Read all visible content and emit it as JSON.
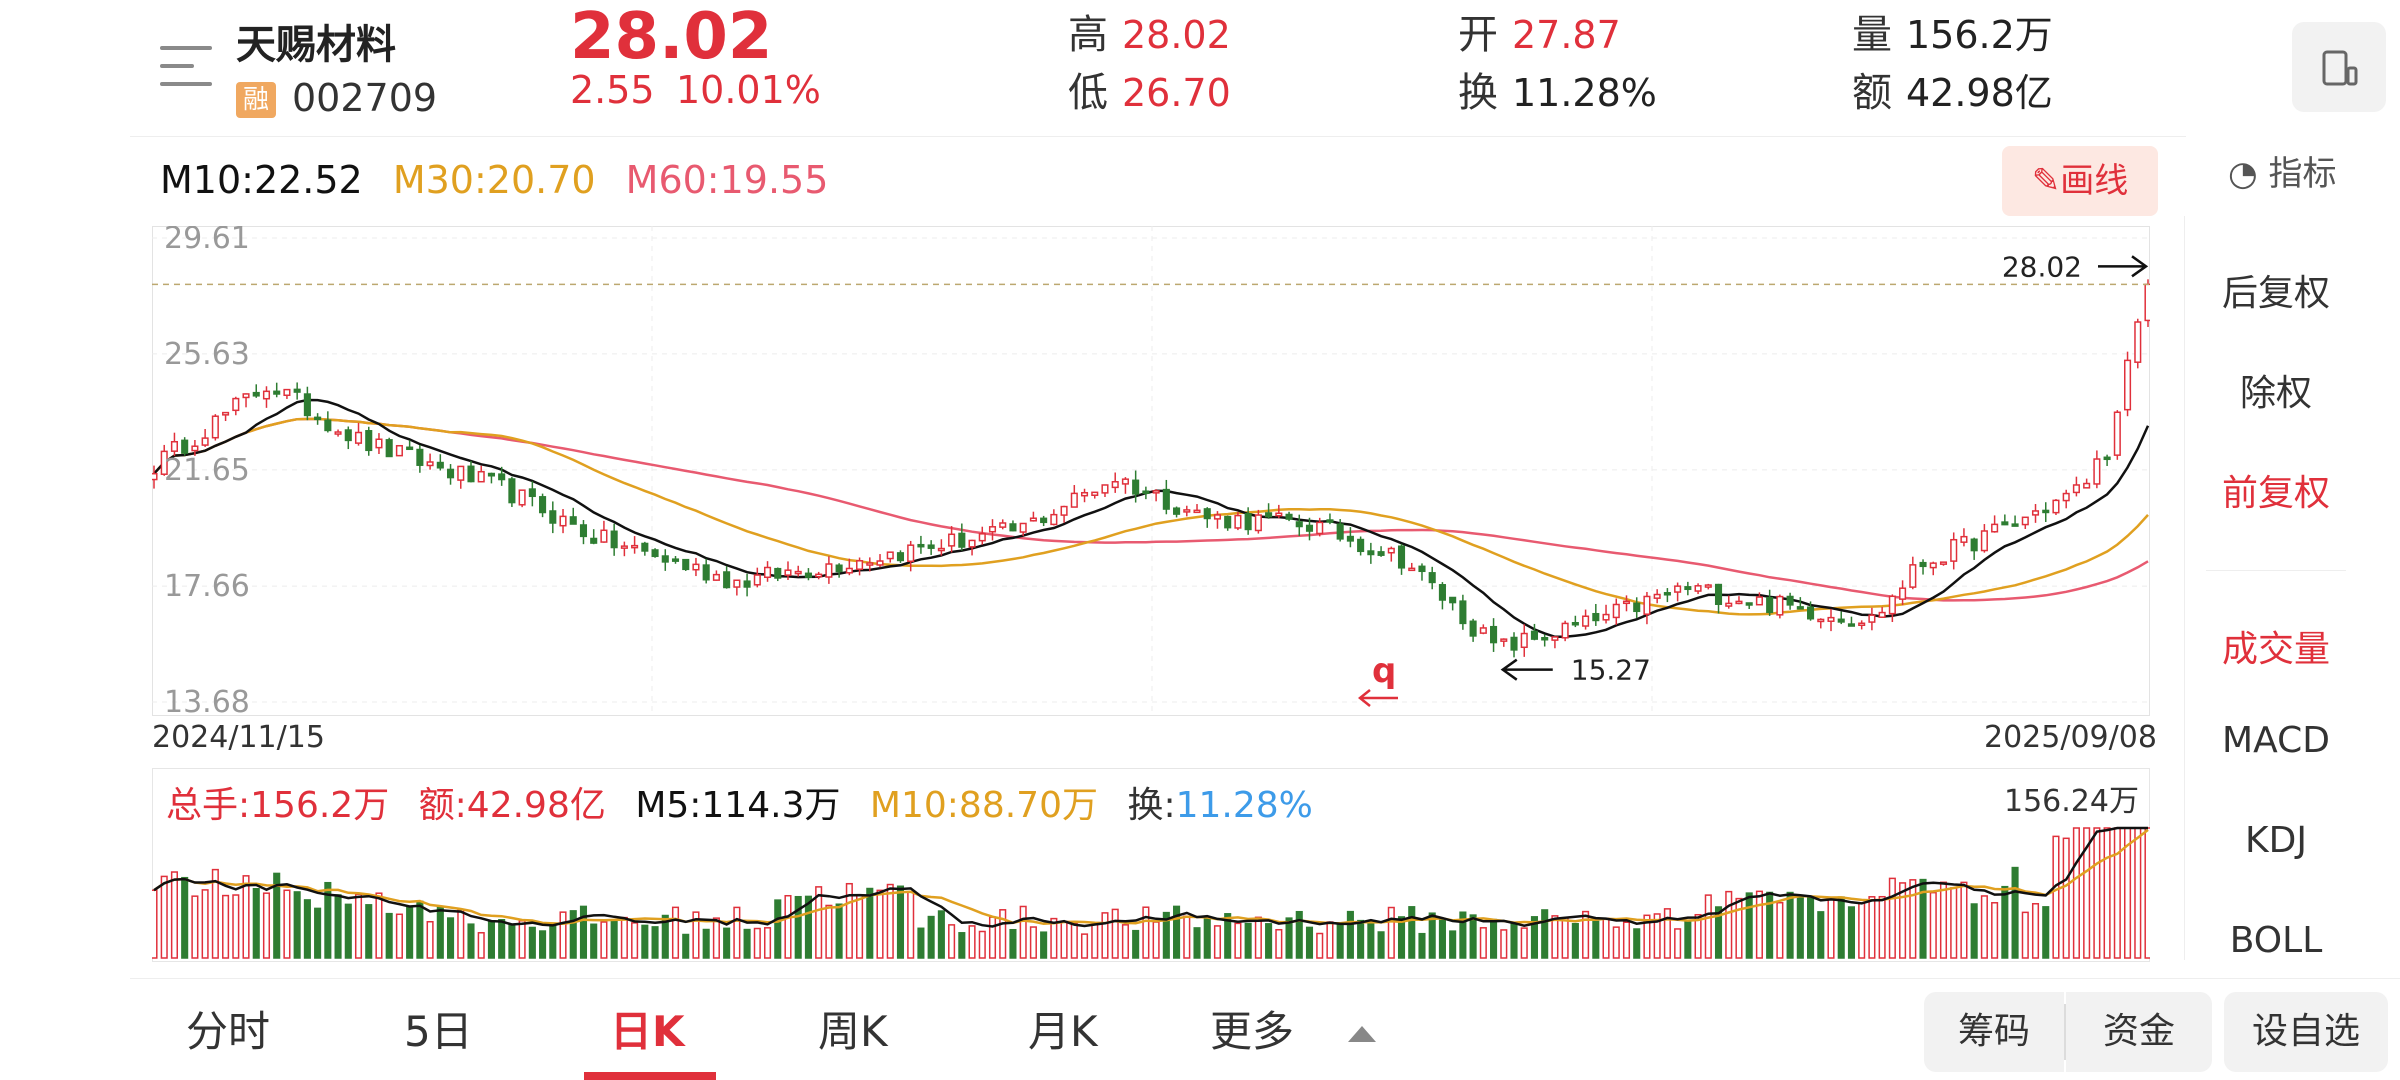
{
  "header": {
    "stock_name": "天赐材料",
    "margin_badge": "融",
    "stock_code": "002709",
    "price": "28.02",
    "change": "2.55",
    "change_pct": "10.01%",
    "quotes": [
      {
        "label": "高",
        "value": "28.02",
        "color": "#e0303b"
      },
      {
        "label": "低",
        "value": "26.70",
        "color": "#e0303b"
      },
      {
        "label": "开",
        "value": "27.87",
        "color": "#e0303b"
      },
      {
        "label": "换",
        "value": "11.28%",
        "color": "#222222"
      },
      {
        "label": "量",
        "value": "156.2万",
        "color": "#222222"
      },
      {
        "label": "额",
        "value": "42.98亿",
        "color": "#222222"
      }
    ]
  },
  "chart": {
    "ma": {
      "m10": "M10:22.52",
      "m30": "M30:20.70",
      "m60": "M60:19.55"
    },
    "draw_button": "画线",
    "indicator_button": "指标",
    "y_ticks": [
      "29.61",
      "25.63",
      "21.65",
      "17.66",
      "13.68"
    ],
    "last_price_label": "28.02",
    "low_label": "15.27",
    "start_date": "2024/11/15",
    "end_date": "2025/09/08",
    "marker_q": "q",
    "colors": {
      "up": "#e0303b",
      "down": "#2e7d32",
      "ma10": "#111111",
      "ma30": "#e0a020",
      "ma60": "#e85a70"
    }
  },
  "volume": {
    "total": "总手:156.2万",
    "amount": "额:42.98亿",
    "m5": "M5:114.3万",
    "m10": "M10:88.70万",
    "turnover_label": "换:",
    "turnover_value": "11.28%",
    "max_label": "156.24万"
  },
  "side_panel": {
    "items": [
      "后复权",
      "除权",
      "前复权",
      "成交量",
      "MACD",
      "KDJ",
      "BOLL"
    ],
    "active": [
      "前复权",
      "成交量"
    ]
  },
  "tabs": [
    "分时",
    "5日",
    "日K",
    "周K",
    "月K",
    "更多"
  ],
  "active_tab": "日K",
  "bottom_buttons": [
    "筹码",
    "资金",
    "设自选"
  ],
  "chart_data": {
    "type": "candlestick",
    "x_range": [
      "2024/11/15",
      "2025/09/08"
    ],
    "ylim": [
      13.68,
      29.61
    ],
    "y_ticks": [
      29.61,
      25.63,
      21.65,
      17.66,
      13.68
    ],
    "close_points": [
      {
        "date": "2024/11/15",
        "close": 21.8
      },
      {
        "date": "2024/12/02",
        "close": 24.6
      },
      {
        "date": "2024/12/16",
        "close": 22.6
      },
      {
        "date": "2025/01/06",
        "close": 21.0
      },
      {
        "date": "2025/01/20",
        "close": 19.3
      },
      {
        "date": "2025/02/10",
        "close": 17.8
      },
      {
        "date": "2025/02/24",
        "close": 18.4
      },
      {
        "date": "2025/03/10",
        "close": 19.0
      },
      {
        "date": "2025/03/24",
        "close": 19.6
      },
      {
        "date": "2025/04/07",
        "close": 21.4
      },
      {
        "date": "2025/04/21",
        "close": 20.0
      },
      {
        "date": "2025/05/06",
        "close": 19.8
      },
      {
        "date": "2025/05/20",
        "close": 18.6
      },
      {
        "date": "2025/06/03",
        "close": 15.5
      },
      {
        "date": "2025/06/17",
        "close": 16.4
      },
      {
        "date": "2025/07/01",
        "close": 17.6
      },
      {
        "date": "2025/07/15",
        "close": 17.0
      },
      {
        "date": "2025/07/29",
        "close": 16.5
      },
      {
        "date": "2025/08/05",
        "close": 18.4
      },
      {
        "date": "2025/08/19",
        "close": 19.8
      },
      {
        "date": "2025/08/29",
        "close": 21.0
      },
      {
        "date": "2025/09/03",
        "close": 22.8
      },
      {
        "date": "2025/09/05",
        "close": 25.47
      },
      {
        "date": "2025/09/08",
        "close": 28.02
      }
    ],
    "last": 28.02,
    "low": 15.27,
    "volume_max": "156.24万"
  }
}
